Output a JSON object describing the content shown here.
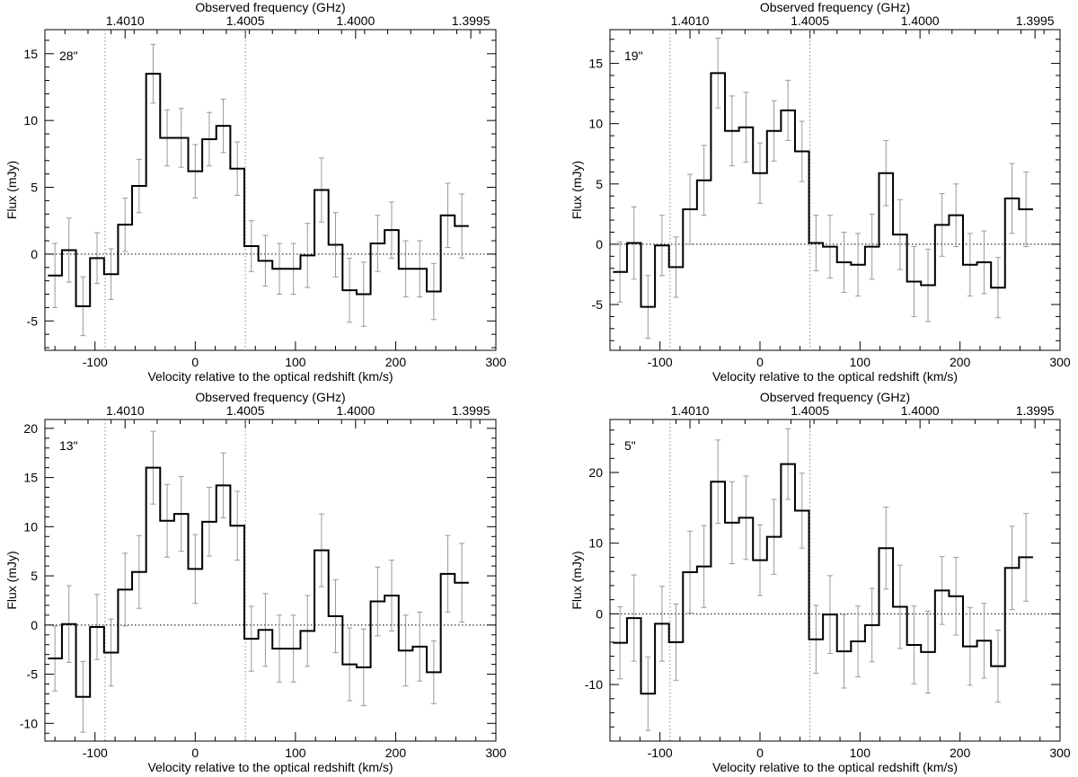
{
  "chart_data": [
    {
      "type": "line",
      "subtype": "step-histogram-with-errorbars",
      "label": "28\"",
      "xlabel": "Velocity relative to the optical redshift (km/s)",
      "ylabel": "Flux (mJy)",
      "top_xlabel": "Observed frequency (GHz)",
      "xlim": [
        -150,
        300
      ],
      "ylim": [
        -7.2,
        16.8
      ],
      "xticks": [
        -100,
        0,
        100,
        200,
        300
      ],
      "yticks": [
        -5,
        0,
        5,
        10,
        15
      ],
      "top_ticks": [
        {
          "v": -70,
          "label": "1.4010"
        },
        {
          "v": 50,
          "label": "1.4005"
        },
        {
          "v": 160,
          "label": "1.4000"
        },
        {
          "v": 275,
          "label": "1.3995"
        }
      ],
      "vlines": [
        -90,
        50
      ],
      "zero_line": 0,
      "x": [
        -140,
        -126,
        -112,
        -98,
        -84,
        -70,
        -56,
        -42,
        -28,
        -14,
        0,
        14,
        28,
        42,
        56,
        70,
        84,
        98,
        112,
        126,
        140,
        154,
        168,
        182,
        196,
        210,
        224,
        238,
        252,
        266
      ],
      "values": [
        -1.6,
        0.3,
        -3.9,
        -0.3,
        -1.5,
        2.2,
        5.1,
        13.5,
        8.7,
        8.7,
        6.2,
        8.6,
        9.6,
        6.4,
        0.6,
        -0.5,
        -1.1,
        -1.1,
        -0.1,
        4.8,
        0.7,
        -2.7,
        -3.0,
        0.8,
        1.8,
        -1.1,
        -1.1,
        -2.8,
        2.9,
        2.1
      ],
      "errors": [
        2.4,
        2.4,
        2.2,
        1.9,
        1.9,
        2.0,
        2.0,
        2.2,
        2.1,
        2.2,
        2.0,
        2.0,
        2.0,
        2.0,
        1.9,
        1.9,
        1.9,
        1.9,
        2.4,
        2.4,
        2.4,
        2.4,
        2.4,
        2.1,
        2.1,
        2.1,
        2.1,
        2.1,
        2.4,
        2.4
      ]
    },
    {
      "type": "line",
      "subtype": "step-histogram-with-errorbars",
      "label": "19\"",
      "xlabel": "Velocity relative to the optical redshift (km/s)",
      "ylabel": "Flux (mJy)",
      "top_xlabel": "Observed frequency (GHz)",
      "xlim": [
        -150,
        300
      ],
      "ylim": [
        -8.8,
        17.8
      ],
      "xticks": [
        -100,
        0,
        100,
        200,
        300
      ],
      "yticks": [
        -5,
        0,
        5,
        10,
        15
      ],
      "top_ticks": [
        {
          "v": -70,
          "label": "1.4010"
        },
        {
          "v": 50,
          "label": "1.4005"
        },
        {
          "v": 160,
          "label": "1.4000"
        },
        {
          "v": 275,
          "label": "1.3995"
        }
      ],
      "vlines": [
        -90,
        50
      ],
      "zero_line": 0,
      "x": [
        -140,
        -126,
        -112,
        -98,
        -84,
        -70,
        -56,
        -42,
        -28,
        -14,
        0,
        14,
        28,
        42,
        56,
        70,
        84,
        98,
        112,
        126,
        140,
        154,
        168,
        182,
        196,
        210,
        224,
        238,
        252,
        266
      ],
      "values": [
        -2.3,
        0.1,
        -5.2,
        -0.1,
        -1.9,
        2.9,
        5.3,
        14.2,
        9.4,
        9.7,
        5.9,
        9.4,
        11.1,
        7.7,
        0.1,
        -0.2,
        -1.5,
        -1.7,
        -0.2,
        5.9,
        0.8,
        -3.1,
        -3.4,
        1.6,
        2.4,
        -1.7,
        -1.5,
        -3.6,
        3.8,
        2.9
      ],
      "errors": [
        2.5,
        3.0,
        2.6,
        2.5,
        2.5,
        2.9,
        2.9,
        2.9,
        2.9,
        2.9,
        2.5,
        2.5,
        2.5,
        2.5,
        2.3,
        2.6,
        2.5,
        2.6,
        2.7,
        2.7,
        2.9,
        2.9,
        3.0,
        2.6,
        2.6,
        2.6,
        2.6,
        2.5,
        2.9,
        3.1
      ]
    },
    {
      "type": "line",
      "subtype": "step-histogram-with-errorbars",
      "label": "13\"",
      "xlabel": "Velocity relative to the optical redshift (km/s)",
      "ylabel": "Flux (mJy)",
      "top_xlabel": "Observed frequency (GHz)",
      "xlim": [
        -150,
        300
      ],
      "ylim": [
        -11.8,
        20.9
      ],
      "xticks": [
        -100,
        0,
        100,
        200,
        300
      ],
      "yticks": [
        -10,
        -5,
        0,
        5,
        10,
        15,
        20
      ],
      "top_ticks": [
        {
          "v": -70,
          "label": "1.4010"
        },
        {
          "v": 50,
          "label": "1.4005"
        },
        {
          "v": 160,
          "label": "1.4000"
        },
        {
          "v": 275,
          "label": "1.3995"
        }
      ],
      "vlines": [
        -90,
        50
      ],
      "zero_line": 0,
      "x": [
        -140,
        -126,
        -112,
        -98,
        -84,
        -70,
        -56,
        -42,
        -28,
        -14,
        0,
        14,
        28,
        42,
        56,
        70,
        84,
        98,
        112,
        126,
        140,
        154,
        168,
        182,
        196,
        210,
        224,
        238,
        252,
        266
      ],
      "values": [
        -3.4,
        0.1,
        -7.3,
        -0.2,
        -2.8,
        3.6,
        5.4,
        16.0,
        10.6,
        11.3,
        5.7,
        10.5,
        14.2,
        10.1,
        -1.4,
        -0.5,
        -2.4,
        -2.4,
        -0.6,
        7.6,
        0.9,
        -4.0,
        -4.3,
        2.4,
        3.0,
        -2.6,
        -2.2,
        -4.8,
        5.2,
        4.3
      ],
      "errors": [
        3.3,
        3.9,
        3.6,
        3.3,
        3.4,
        3.7,
        3.7,
        3.7,
        3.7,
        3.8,
        3.5,
        3.5,
        3.3,
        3.5,
        3.3,
        3.7,
        3.4,
        3.4,
        3.6,
        3.7,
        3.7,
        3.7,
        3.9,
        3.5,
        3.6,
        3.6,
        3.5,
        3.2,
        3.9,
        4.0
      ]
    },
    {
      "type": "line",
      "subtype": "step-histogram-with-errorbars",
      "label": "5\"",
      "xlabel": "Velocity relative to the optical redshift (km/s)",
      "ylabel": "Flux (mJy)",
      "top_xlabel": "Observed frequency (GHz)",
      "xlim": [
        -150,
        300
      ],
      "ylim": [
        -18.0,
        27.5
      ],
      "xticks": [
        -100,
        0,
        100,
        200,
        300
      ],
      "yticks": [
        -10,
        0,
        10,
        20
      ],
      "top_ticks": [
        {
          "v": -70,
          "label": "1.4010"
        },
        {
          "v": 50,
          "label": "1.4005"
        },
        {
          "v": 160,
          "label": "1.4000"
        },
        {
          "v": 275,
          "label": "1.3995"
        }
      ],
      "vlines": [
        -90,
        50
      ],
      "zero_line": 0,
      "x": [
        -140,
        -126,
        -112,
        -98,
        -84,
        -70,
        -56,
        -42,
        -28,
        -14,
        0,
        14,
        28,
        42,
        56,
        70,
        84,
        98,
        112,
        126,
        140,
        154,
        168,
        182,
        196,
        210,
        224,
        238,
        252,
        266
      ],
      "values": [
        -4.1,
        -0.6,
        -11.3,
        -1.4,
        -4.0,
        5.9,
        6.7,
        18.7,
        12.9,
        13.6,
        7.6,
        10.9,
        21.2,
        14.6,
        -3.6,
        -0.1,
        -5.3,
        -3.9,
        -1.6,
        9.3,
        1.0,
        -4.4,
        -5.4,
        3.3,
        2.5,
        -4.6,
        -3.8,
        -7.4,
        6.5,
        8.0
      ],
      "errors": [
        5.1,
        6.1,
        5.2,
        5.3,
        5.4,
        5.8,
        5.8,
        5.9,
        5.8,
        5.9,
        5.0,
        5.3,
        5.0,
        5.3,
        4.8,
        5.5,
        5.2,
        5.0,
        5.2,
        5.8,
        5.9,
        5.5,
        5.8,
        4.8,
        5.5,
        5.5,
        5.3,
        5.1,
        5.9,
        6.2
      ]
    }
  ]
}
